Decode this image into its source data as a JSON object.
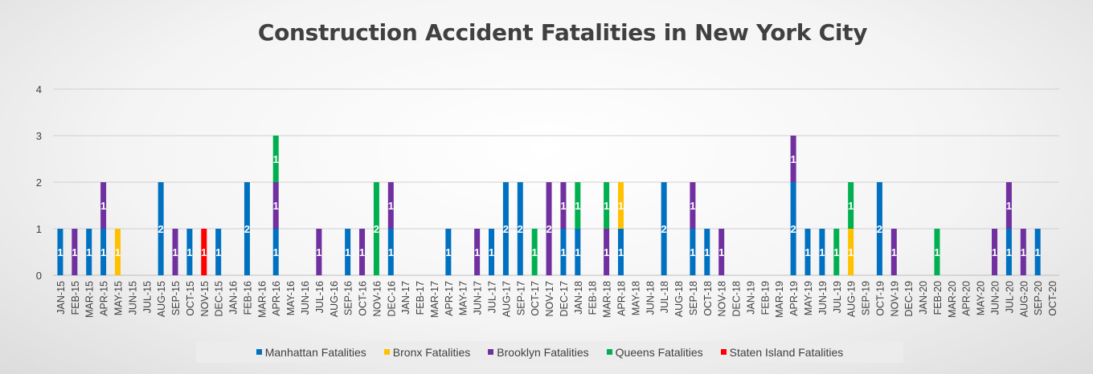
{
  "chart_data": {
    "type": "bar",
    "stacked": true,
    "title": "Construction Accident Fatalities in New York City",
    "xlabel": "",
    "ylabel": "",
    "ylim": [
      0,
      4
    ],
    "yticks": [
      "0",
      "1",
      "2",
      "3",
      "4"
    ],
    "grid": true,
    "legend_position": "bottom",
    "categories": [
      "JAN-15",
      "FEB-15",
      "MAR-15",
      "APR-15",
      "MAY-15",
      "JUN-15",
      "JUL-15",
      "AUG-15",
      "SEP-15",
      "OCT-15",
      "NOV-15",
      "DEC-15",
      "JAN-16",
      "FEB-16",
      "MAR-16",
      "APR-16",
      "MAY-16",
      "JUN-16",
      "JUL-16",
      "AUG-16",
      "SEP-16",
      "OCT-16",
      "NOV-16",
      "DEC-16",
      "JAN-17",
      "FEB-17",
      "MAR-17",
      "APR-17",
      "MAY-17",
      "JUN-17",
      "JUL-17",
      "AUG-17",
      "SEP-17",
      "OCT-17",
      "NOV-17",
      "DEC-17",
      "JAN-18",
      "FEB-18",
      "MAR-18",
      "APR-18",
      "MAY-18",
      "JUN-18",
      "JUL-18",
      "AUG-18",
      "SEP-18",
      "OCT-18",
      "NOV-18",
      "DEC-18",
      "JAN-19",
      "FEB-19",
      "MAR-19",
      "APR-19",
      "MAY-19",
      "JUN-19",
      "JUL-19",
      "AUG-19",
      "SEP-19",
      "OCT-19",
      "NOV-19",
      "DEC-19",
      "JAN-20",
      "FEB-20",
      "MAR-20",
      "APR-20",
      "MAY-20",
      "JUN-20",
      "JUL-20",
      "AUG-20",
      "SEP-20",
      "OCT-20"
    ],
    "series": [
      {
        "name": "Manhattan Fatalities",
        "color": "#0070c0",
        "values": [
          1,
          0,
          1,
          1,
          0,
          0,
          0,
          2,
          0,
          1,
          0,
          1,
          0,
          2,
          0,
          1,
          0,
          0,
          0,
          0,
          1,
          0,
          0,
          1,
          0,
          0,
          0,
          1,
          0,
          0,
          1,
          2,
          2,
          0,
          0,
          1,
          1,
          0,
          0,
          1,
          0,
          0,
          2,
          0,
          1,
          1,
          0,
          0,
          0,
          0,
          0,
          2,
          1,
          1,
          0,
          0,
          0,
          2,
          0,
          0,
          0,
          0,
          0,
          0,
          0,
          0,
          1,
          0,
          1,
          0
        ]
      },
      {
        "name": "Bronx Fatalities",
        "color": "#ffc000",
        "values": [
          0,
          0,
          0,
          0,
          1,
          0,
          0,
          0,
          0,
          0,
          0,
          0,
          0,
          0,
          0,
          0,
          0,
          0,
          0,
          0,
          0,
          0,
          0,
          0,
          0,
          0,
          0,
          0,
          0,
          0,
          0,
          0,
          0,
          0,
          0,
          0,
          0,
          0,
          0,
          1,
          0,
          0,
          0,
          0,
          0,
          0,
          0,
          0,
          0,
          0,
          0,
          0,
          0,
          0,
          0,
          1,
          0,
          0,
          0,
          0,
          0,
          0,
          0,
          0,
          0,
          0,
          0,
          0,
          0,
          0
        ]
      },
      {
        "name": "Brooklyn Fatalities",
        "color": "#7030a0",
        "values": [
          0,
          1,
          0,
          1,
          0,
          0,
          0,
          0,
          1,
          0,
          0,
          0,
          0,
          0,
          0,
          1,
          0,
          0,
          1,
          0,
          0,
          1,
          0,
          1,
          0,
          0,
          0,
          0,
          0,
          1,
          0,
          0,
          0,
          0,
          2,
          1,
          0,
          0,
          1,
          0,
          0,
          0,
          0,
          0,
          1,
          0,
          1,
          0,
          0,
          0,
          0,
          1,
          0,
          0,
          0,
          0,
          0,
          0,
          1,
          0,
          0,
          0,
          0,
          0,
          0,
          1,
          1,
          1,
          0,
          0
        ]
      },
      {
        "name": "Queens Fatalities",
        "color": "#00b050",
        "values": [
          0,
          0,
          0,
          0,
          0,
          0,
          0,
          0,
          0,
          0,
          0,
          0,
          0,
          0,
          0,
          1,
          0,
          0,
          0,
          0,
          0,
          0,
          2,
          0,
          0,
          0,
          0,
          0,
          0,
          0,
          0,
          0,
          0,
          1,
          0,
          0,
          1,
          0,
          1,
          0,
          0,
          0,
          0,
          0,
          0,
          0,
          0,
          0,
          0,
          0,
          0,
          0,
          0,
          0,
          1,
          1,
          0,
          0,
          0,
          0,
          0,
          1,
          0,
          0,
          0,
          0,
          0,
          0,
          0,
          0
        ]
      },
      {
        "name": "Staten Island Fatalities",
        "color": "#ff0000",
        "values": [
          0,
          0,
          0,
          0,
          0,
          0,
          0,
          0,
          0,
          0,
          1,
          0,
          0,
          0,
          0,
          0,
          0,
          0,
          0,
          0,
          0,
          0,
          0,
          0,
          0,
          0,
          0,
          0,
          0,
          0,
          0,
          0,
          0,
          0,
          0,
          0,
          0,
          0,
          0,
          0,
          0,
          0,
          0,
          0,
          0,
          0,
          0,
          0,
          0,
          0,
          0,
          0,
          0,
          0,
          0,
          0,
          0,
          0,
          0,
          0,
          0,
          0,
          0,
          0,
          0,
          0,
          0,
          0,
          0,
          0
        ]
      }
    ]
  }
}
